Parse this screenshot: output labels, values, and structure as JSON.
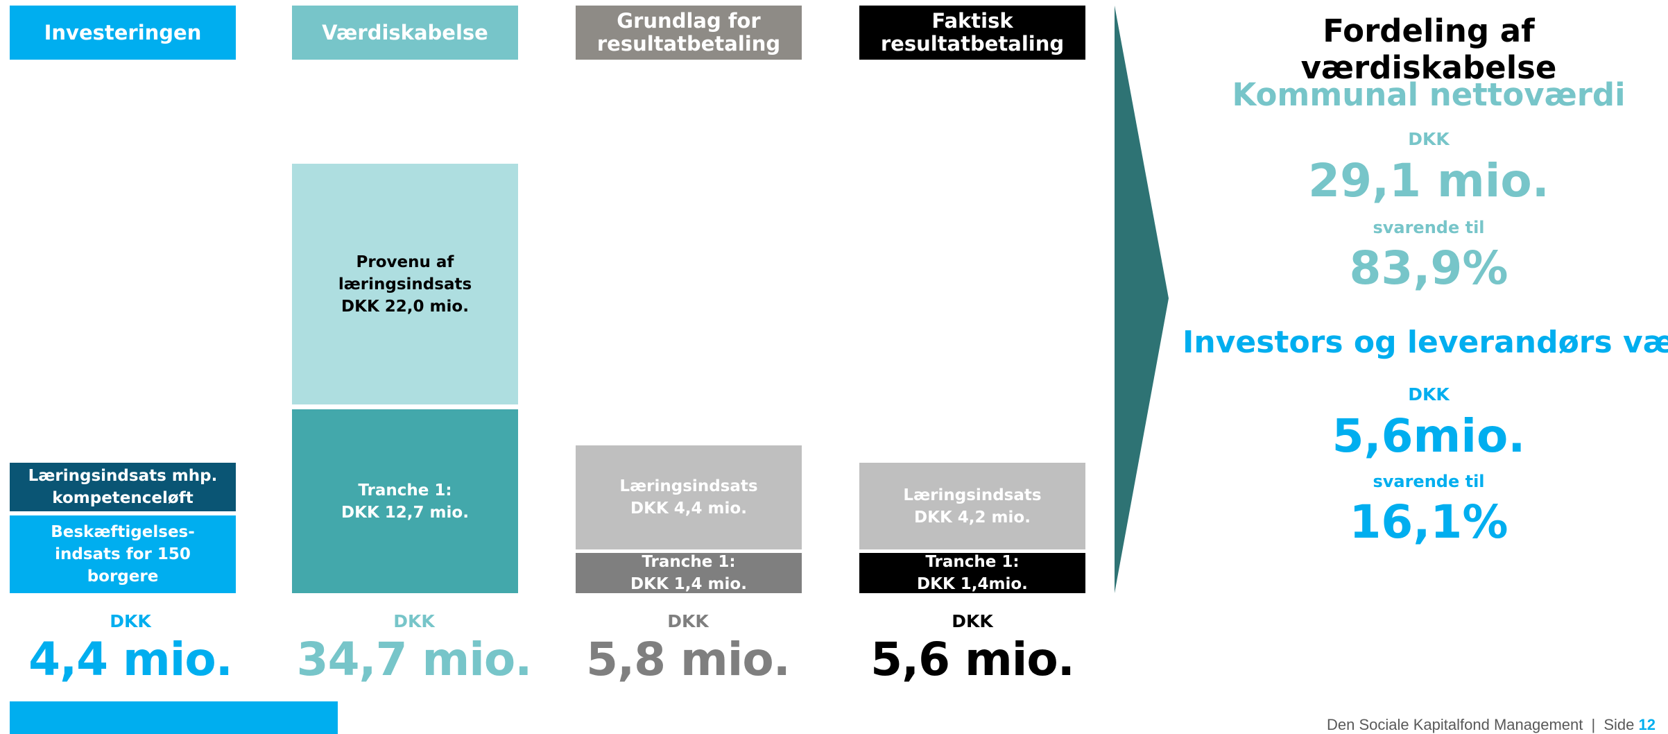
{
  "colors": {
    "blue": "#00aeef",
    "dark_blue": "#0a5574",
    "light_teal": "#aedee0",
    "teal": "#77c5c9",
    "mid_teal": "#43a8ab",
    "grey": "#8e8b86",
    "light_grey": "#bfbfbf",
    "dark_grey": "#7f7f7f",
    "black": "#000000",
    "arrow": "#2e7374"
  },
  "chart_data": {
    "type": "bar",
    "stacked": true,
    "unit": "DKK mio.",
    "categories": [
      "Investeringen",
      "Værdiskabelse",
      "Grundlag for resultatbetaling",
      "Faktisk resultatbetaling"
    ],
    "bars": [
      {
        "category": "Investeringen",
        "segments": [
          {
            "label": "Beskæftigelses-indsats for 150 borgere",
            "value": 2.9,
            "color": "#00aeef",
            "text_color": "#ffffff"
          },
          {
            "label": "Læringsindsats mhp. kompetenceløft",
            "value": 1.5,
            "color": "#0a5574",
            "text_color": "#ffffff"
          }
        ],
        "total_prefix": "DKK",
        "total_label": "4,4 mio.",
        "total_color": "#00aeef"
      },
      {
        "category": "Værdiskabelse",
        "segments": [
          {
            "label": "Tranche 1:\nDKK 12,7 mio.",
            "value": 12.7,
            "color": "#43a8ab",
            "text_color": "#ffffff"
          },
          {
            "label": "Provenu af\nlæringsindsats\nDKK 22,0 mio.",
            "value": 22.0,
            "color": "#aedee0",
            "text_color": "#000000"
          }
        ],
        "total_prefix": "DKK",
        "total_label": "34,7 mio.",
        "total_color": "#77c5c9"
      },
      {
        "category": "Grundlag for resultatbetaling",
        "segments": [
          {
            "label": "Tranche 1:\nDKK 1,4 mio.",
            "value": 1.4,
            "color": "#7f7f7f",
            "text_color": "#ffffff"
          },
          {
            "label": "Læringsindsats\nDKK 4,4 mio.",
            "value": 4.4,
            "color": "#bfbfbf",
            "text_color": "#ffffff"
          }
        ],
        "total_prefix": "DKK",
        "total_label": "5,8 mio.",
        "total_color": "#7f7f7f"
      },
      {
        "category": "Faktisk resultatbetaling",
        "segments": [
          {
            "label": "Tranche 1:\nDKK 1,4mio.",
            "value": 1.4,
            "color": "#000000",
            "text_color": "#ffffff"
          },
          {
            "label": "Læringsindsats\nDKK 4,2 mio.",
            "value": 4.2,
            "color": "#bfbfbf",
            "text_color": "#ffffff"
          }
        ],
        "total_prefix": "DKK",
        "total_label": "5,6 mio.",
        "total_color": "#000000"
      }
    ]
  },
  "headers": [
    {
      "label": "Investeringen",
      "color": "#00aeef"
    },
    {
      "label": "Værdiskabelse",
      "color": "#77c5c9"
    },
    {
      "label": "Grundlag for\nresultatbetaling",
      "color": "#8e8b86"
    },
    {
      "label": "Faktisk\nresultatbetaling",
      "color": "#000000"
    }
  ],
  "distribution": {
    "title": "Fordeling af værdiskabelse",
    "kommunal": {
      "heading": "Kommunal nettoværdi",
      "prefix": "DKK",
      "amount": "29,1 mio.",
      "equiv": "svarende til",
      "pct": "83,9%",
      "color": "#77c5c9"
    },
    "investor": {
      "heading": "Investors og leverandørs værdi",
      "prefix": "DKK",
      "amount": "5,6mio.",
      "equiv": "svarende til",
      "pct": "16,1%",
      "color": "#00aeef"
    }
  },
  "footer": {
    "text": "Den Sociale Kapitalfond Management",
    "separator": "|",
    "side_label": "Side",
    "page_number": "12"
  }
}
